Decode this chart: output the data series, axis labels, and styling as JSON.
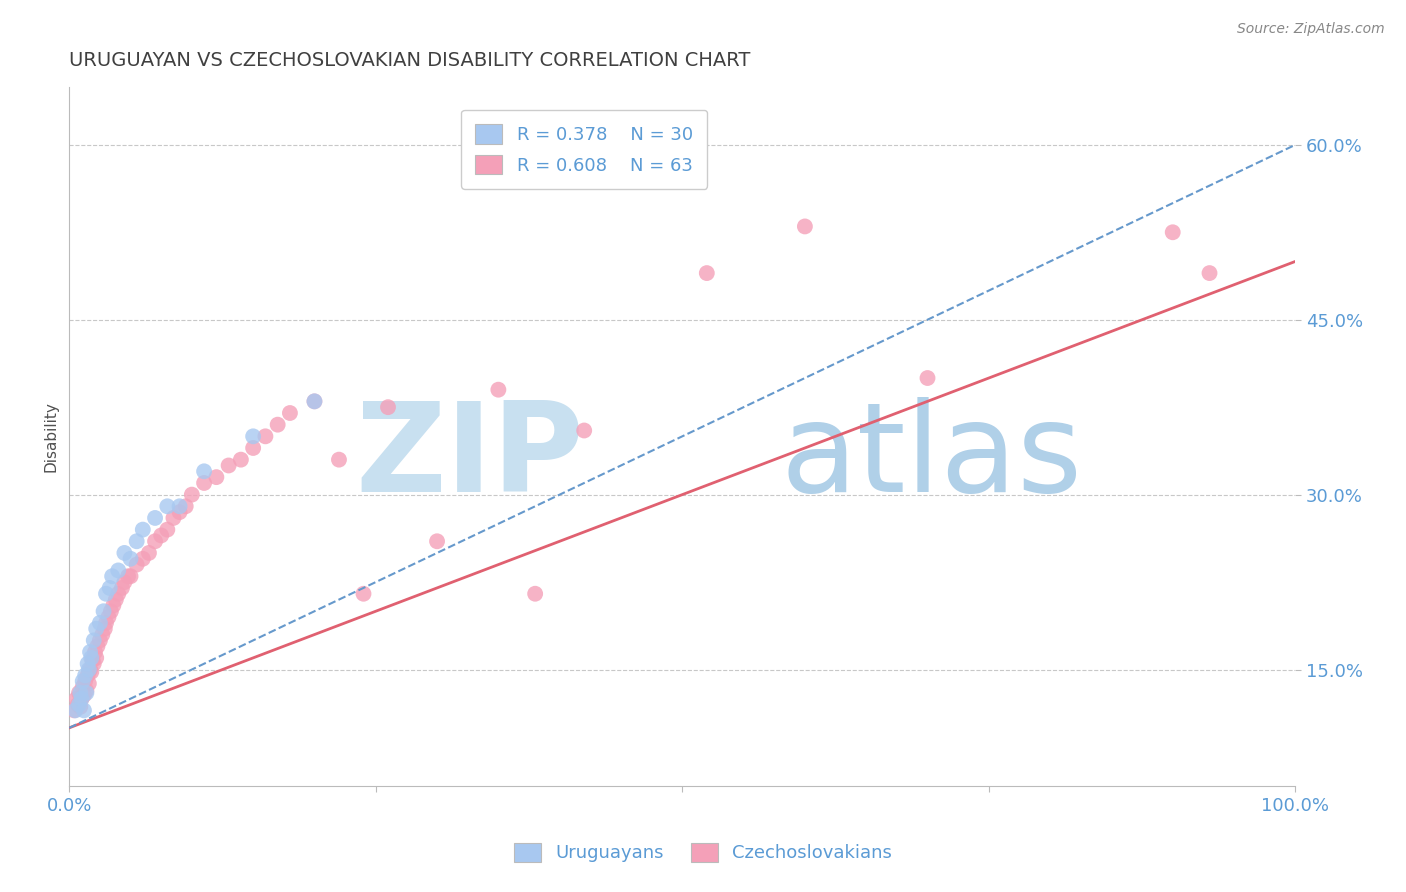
{
  "title": "URUGUAYAN VS CZECHOSLOVAKIAN DISABILITY CORRELATION CHART",
  "source": "Source: ZipAtlas.com",
  "ylabel": "Disability",
  "ylim": [
    0.05,
    0.65
  ],
  "xlim": [
    0.0,
    1.0
  ],
  "uruguayan_R": 0.378,
  "uruguayan_N": 30,
  "czechoslovakian_R": 0.608,
  "czechoslovakian_N": 63,
  "scatter_color_uruguayan": "#A8C8F0",
  "scatter_color_czechoslovakian": "#F4A0B8",
  "trendline_color_uruguayan": "#6699CC",
  "trendline_color_czechoslovakian": "#E06070",
  "background_color": "#FFFFFF",
  "grid_color": "#C8C8C8",
  "title_color": "#404040",
  "axis_label_color": "#5B9BD5",
  "watermark_zip_color": "#C8E0F0",
  "watermark_atlas_color": "#B0D0E8",
  "uruguayan_line": [
    0.0,
    1.0,
    0.1,
    0.6
  ],
  "czechoslovakian_line": [
    0.0,
    1.0,
    0.1,
    0.5
  ],
  "uruguayan_x": [
    0.005,
    0.008,
    0.009,
    0.01,
    0.011,
    0.012,
    0.013,
    0.014,
    0.015,
    0.016,
    0.017,
    0.018,
    0.02,
    0.022,
    0.025,
    0.028,
    0.03,
    0.033,
    0.035,
    0.04,
    0.045,
    0.05,
    0.055,
    0.06,
    0.07,
    0.08,
    0.09,
    0.11,
    0.15,
    0.2
  ],
  "uruguayan_y": [
    0.115,
    0.12,
    0.13,
    0.125,
    0.14,
    0.115,
    0.145,
    0.13,
    0.155,
    0.15,
    0.165,
    0.16,
    0.175,
    0.185,
    0.19,
    0.2,
    0.215,
    0.22,
    0.23,
    0.235,
    0.25,
    0.245,
    0.26,
    0.27,
    0.28,
    0.29,
    0.29,
    0.32,
    0.35,
    0.38
  ],
  "czechoslovakian_x": [
    0.004,
    0.006,
    0.007,
    0.008,
    0.009,
    0.01,
    0.011,
    0.012,
    0.013,
    0.014,
    0.015,
    0.016,
    0.017,
    0.018,
    0.019,
    0.02,
    0.021,
    0.022,
    0.023,
    0.025,
    0.027,
    0.029,
    0.03,
    0.032,
    0.034,
    0.036,
    0.038,
    0.04,
    0.043,
    0.045,
    0.048,
    0.05,
    0.055,
    0.06,
    0.065,
    0.07,
    0.075,
    0.08,
    0.085,
    0.09,
    0.095,
    0.1,
    0.11,
    0.12,
    0.13,
    0.14,
    0.15,
    0.16,
    0.17,
    0.18,
    0.2,
    0.22,
    0.24,
    0.26,
    0.3,
    0.35,
    0.38,
    0.42,
    0.52,
    0.6,
    0.7,
    0.9,
    0.93
  ],
  "czechoslovakian_y": [
    0.115,
    0.125,
    0.12,
    0.13,
    0.118,
    0.125,
    0.135,
    0.128,
    0.14,
    0.132,
    0.145,
    0.138,
    0.15,
    0.148,
    0.158,
    0.155,
    0.165,
    0.16,
    0.17,
    0.175,
    0.18,
    0.185,
    0.19,
    0.195,
    0.2,
    0.205,
    0.21,
    0.215,
    0.22,
    0.225,
    0.23,
    0.23,
    0.24,
    0.245,
    0.25,
    0.26,
    0.265,
    0.27,
    0.28,
    0.285,
    0.29,
    0.3,
    0.31,
    0.315,
    0.325,
    0.33,
    0.34,
    0.35,
    0.36,
    0.37,
    0.38,
    0.33,
    0.215,
    0.375,
    0.26,
    0.39,
    0.215,
    0.355,
    0.49,
    0.53,
    0.4,
    0.525,
    0.49
  ]
}
